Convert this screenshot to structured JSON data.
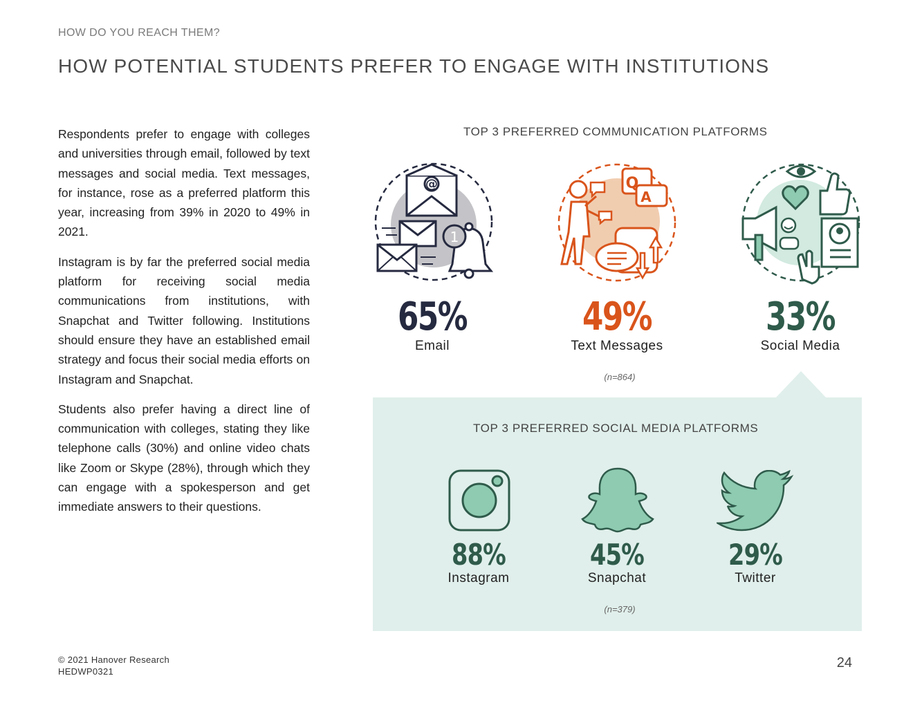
{
  "header": {
    "eyebrow": "HOW DO YOU REACH THEM?",
    "title": "HOW POTENTIAL STUDENTS PREFER TO ENGAGE WITH INSTITUTIONS"
  },
  "body": {
    "paragraphs": [
      "Respondents prefer to engage with colleges and universities through email, followed by text messages and social media. Text messages, for instance, rose as a preferred platform this year, increasing from 39% in 2020 to 49% in 2021.",
      "Instagram is by far the preferred social media platform for receiving social media communications from institutions, with Snapchat and Twitter following. Institutions should ensure they have an established email strategy and focus their social media efforts on Instagram and Snapchat.",
      "Students also prefer having a direct line of communication with colleges, stating they like telephone calls (30%) and online video chats like Zoom or Skype (28%), through which they can engage with a spokesperson and get immediate answers to their questions."
    ]
  },
  "communication": {
    "title": "TOP 3 PREFERRED COMMUNICATION PLATFORMS",
    "items": [
      {
        "value": "65%",
        "label": "Email",
        "color": "#262a40",
        "icon": "email-icon"
      },
      {
        "value": "49%",
        "label": "Text Messages",
        "color": "#d9541b",
        "icon": "text-messages-icon"
      },
      {
        "value": "33%",
        "label": "Social Media",
        "color": "#2f5b4b",
        "icon": "social-media-icon"
      }
    ],
    "note": "(n=864)"
  },
  "social": {
    "title": "TOP 3 PREFERRED SOCIAL MEDIA PLATFORMS",
    "items": [
      {
        "value": "88%",
        "label": "Instagram",
        "icon": "instagram-icon"
      },
      {
        "value": "45%",
        "label": "Snapchat",
        "icon": "snapchat-icon"
      },
      {
        "value": "29%",
        "label": "Twitter",
        "icon": "twitter-icon"
      }
    ],
    "note": "(n=379)"
  },
  "colors": {
    "navy": "#262a40",
    "orange": "#d9541b",
    "green_dark": "#2f5b4b",
    "green_light": "#8ecbb1",
    "panel_bg": "#e0efeb"
  },
  "footer": {
    "copyright": "© 2021 Hanover Research",
    "code": "HEDWP0321",
    "page_number": "24"
  }
}
